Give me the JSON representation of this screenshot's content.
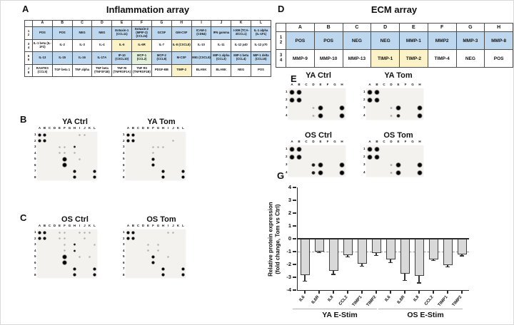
{
  "panels": {
    "a": {
      "letter": "A",
      "title": "Inflammation array"
    },
    "b": {
      "letter": "B",
      "blot1_title": "YA Ctrl",
      "blot2_title": "YA Tom"
    },
    "c": {
      "letter": "C",
      "blot1_title": "OS Ctrl",
      "blot2_title": "OS Tom"
    },
    "d": {
      "letter": "D",
      "title": "ECM array"
    },
    "e": {
      "letter": "E",
      "blot1_title": "YA Ctrl",
      "blot2_title": "YA Tom"
    },
    "f": {
      "letter": "F",
      "blot1_title": "OS Ctrl",
      "blot2_title": "OS Tom"
    },
    "g": {
      "letter": "G"
    }
  },
  "colors": {
    "header_blue": "#BDD7EE",
    "highlight_yellow": "#FBF2C7",
    "highlight_green": "#E2EFDA",
    "white": "#FFFFFF",
    "bar_fill": "#D9D9D9",
    "bar_border": "#404040"
  },
  "inflammation_table": {
    "columns": [
      "A",
      "B",
      "C",
      "D",
      "E",
      "F",
      "G",
      "H",
      "I",
      "J",
      "K",
      "L"
    ],
    "row_numbers": [
      [
        "1",
        "2"
      ],
      [
        "3",
        "4"
      ],
      [
        "5",
        "6"
      ],
      [
        "7",
        "8"
      ]
    ],
    "rows": [
      [
        {
          "t": "POS",
          "s": "b"
        },
        {
          "t": "POS",
          "s": "b"
        },
        {
          "t": "NEG",
          "s": "b"
        },
        {
          "t": "NEG",
          "s": "b"
        },
        {
          "t": "Eotaxin-1 (CCL11)",
          "s": "b"
        },
        {
          "t": "Eotaxin-2 (MPIF-2) (CCL24)",
          "s": "b"
        },
        {
          "t": "GCSF",
          "s": "b"
        },
        {
          "t": "GM-CSF",
          "s": "b"
        },
        {
          "t": "ICAM-1 (CD54)",
          "s": "b"
        },
        {
          "t": "IFN gamma",
          "s": "b"
        },
        {
          "t": "I-309 (TCA-3/CCL1)",
          "s": "b"
        },
        {
          "t": "IL-1 alpha (IL-1F1)",
          "s": "b"
        }
      ],
      [
        {
          "t": "IL-1 beta (IL-1F2)",
          "s": "w"
        },
        {
          "t": "IL-2",
          "s": "w"
        },
        {
          "t": "IL-3",
          "s": "w"
        },
        {
          "t": "IL-4",
          "s": "w"
        },
        {
          "t": "IL-6",
          "s": "y"
        },
        {
          "t": "IL-6R",
          "s": "y"
        },
        {
          "t": "IL-7",
          "s": "w"
        },
        {
          "t": "IL-8 (CXCL8)",
          "s": "y"
        },
        {
          "t": "IL-10",
          "s": "w"
        },
        {
          "t": "IL-11",
          "s": "w"
        },
        {
          "t": "IL-12 p40",
          "s": "w"
        },
        {
          "t": "IL-12 p70",
          "s": "w"
        }
      ],
      [
        {
          "t": "IL-13",
          "s": "b"
        },
        {
          "t": "IL-15",
          "s": "b"
        },
        {
          "t": "IL-16",
          "s": "b"
        },
        {
          "t": "IL-17A",
          "s": "b"
        },
        {
          "t": "IP-10 (CXCL10)",
          "s": "b"
        },
        {
          "t": "MCP-1 (CCL2)",
          "s": "g"
        },
        {
          "t": "MCP-2 (CCL8)",
          "s": "b"
        },
        {
          "t": "M-CSF",
          "s": "b"
        },
        {
          "t": "MIG (CXCL9)",
          "s": "b"
        },
        {
          "t": "MIP-1 alpha (CCL3)",
          "s": "b"
        },
        {
          "t": "MIP-1 beta (CCL4)",
          "s": "b"
        },
        {
          "t": "MIP-1 delta (CCL15)",
          "s": "b"
        }
      ],
      [
        {
          "t": "RANTES (CCL5)",
          "s": "w"
        },
        {
          "t": "TGF beta 1",
          "s": "w"
        },
        {
          "t": "TNF alpha",
          "s": "w"
        },
        {
          "t": "TNF beta (TNFSF1B)",
          "s": "w"
        },
        {
          "t": "TNF RI (TNFRSF1A)",
          "s": "w"
        },
        {
          "t": "TNF RII (TNFRSF1B)",
          "s": "w"
        },
        {
          "t": "PDGF-BB",
          "s": "w"
        },
        {
          "t": "TIMP-2",
          "s": "y"
        },
        {
          "t": "BLANK",
          "s": "w"
        },
        {
          "t": "BLANK",
          "s": "w"
        },
        {
          "t": "NEG",
          "s": "w"
        },
        {
          "t": "POS",
          "s": "w"
        }
      ]
    ]
  },
  "ecm_table": {
    "columns": [
      "A",
      "B",
      "C",
      "D",
      "E",
      "F",
      "G",
      "H"
    ],
    "row_numbers": [
      [
        "1",
        "2"
      ],
      [
        "3",
        "4"
      ]
    ],
    "rows": [
      [
        {
          "t": "POS",
          "s": "b"
        },
        {
          "t": "POS",
          "s": "b"
        },
        {
          "t": "NEG",
          "s": "b"
        },
        {
          "t": "NEG",
          "s": "b"
        },
        {
          "t": "MMP-1",
          "s": "b"
        },
        {
          "t": "MMP2",
          "s": "b"
        },
        {
          "t": "MMP-3",
          "s": "b"
        },
        {
          "t": "MMP-8",
          "s": "b"
        }
      ],
      [
        {
          "t": "MMP-9",
          "s": "w"
        },
        {
          "t": "MMP-10",
          "s": "w"
        },
        {
          "t": "MMP-13",
          "s": "w"
        },
        {
          "t": "TIMP-1",
          "s": "y"
        },
        {
          "t": "TIMP-2",
          "s": "y"
        },
        {
          "t": "TIMP-4",
          "s": "w"
        },
        {
          "t": "NEG",
          "s": "w"
        },
        {
          "t": "POS",
          "s": "w"
        }
      ]
    ]
  },
  "blots": {
    "cols12": [
      "A",
      "B",
      "C",
      "D",
      "E",
      "F",
      "G",
      "H",
      "I",
      "J",
      "K",
      "L"
    ],
    "rows8": [
      "1",
      "2",
      "3",
      "4",
      "5",
      "6",
      "7",
      "8"
    ],
    "cols8": [
      "A",
      "B",
      "C",
      "D",
      "E",
      "F",
      "G",
      "H"
    ],
    "rows4": [
      "1",
      "2",
      "3",
      "4"
    ],
    "b1": {
      "spots": [
        [
          "A",
          1,
          "s"
        ],
        [
          "B",
          1,
          "s"
        ],
        [
          "A",
          2,
          "s"
        ],
        [
          "B",
          2,
          "s"
        ],
        [
          "I",
          1,
          "f"
        ],
        [
          "J",
          1,
          "f"
        ],
        [
          "E",
          3,
          "f"
        ],
        [
          "F",
          3,
          "f"
        ],
        [
          "H",
          3,
          "m"
        ],
        [
          "E",
          4,
          "f"
        ],
        [
          "F",
          4,
          "f"
        ],
        [
          "H",
          4,
          "f"
        ],
        [
          "F",
          5,
          "xl"
        ],
        [
          "F",
          6,
          "xl"
        ],
        [
          "I",
          5,
          "f"
        ],
        [
          "H",
          7,
          "s"
        ],
        [
          "L",
          7,
          "s"
        ],
        [
          "H",
          8,
          "s"
        ],
        [
          "L",
          8,
          "s"
        ]
      ]
    },
    "b2": {
      "spots": [
        [
          "A",
          1,
          "s"
        ],
        [
          "B",
          1,
          "s"
        ],
        [
          "A",
          2,
          "s"
        ],
        [
          "B",
          2,
          "s"
        ],
        [
          "J",
          2,
          "f"
        ],
        [
          "F",
          3,
          "f"
        ],
        [
          "G",
          3,
          "f"
        ],
        [
          "H",
          3,
          "f"
        ],
        [
          "F",
          4,
          "f"
        ],
        [
          "F",
          5,
          "s"
        ],
        [
          "F",
          6,
          "s"
        ],
        [
          "H",
          7,
          "s"
        ],
        [
          "L",
          7,
          "s"
        ],
        [
          "H",
          8,
          "s"
        ],
        [
          "L",
          8,
          "s"
        ]
      ]
    },
    "c1": {
      "spots": [
        [
          "A",
          1,
          "s"
        ],
        [
          "B",
          1,
          "s"
        ],
        [
          "A",
          2,
          "s"
        ],
        [
          "B",
          2,
          "s"
        ],
        [
          "E",
          1,
          "f"
        ],
        [
          "F",
          1,
          "f"
        ],
        [
          "I",
          1,
          "f"
        ],
        [
          "J",
          1,
          "f"
        ],
        [
          "K",
          1,
          "f"
        ],
        [
          "E",
          2,
          "f"
        ],
        [
          "F",
          2,
          "f"
        ],
        [
          "J",
          2,
          "f"
        ],
        [
          "F",
          3,
          "f"
        ],
        [
          "H",
          3,
          "m"
        ],
        [
          "L",
          3,
          "f"
        ],
        [
          "F",
          4,
          "f"
        ],
        [
          "H",
          4,
          "m"
        ],
        [
          "F",
          5,
          "xl"
        ],
        [
          "I",
          5,
          "f"
        ],
        [
          "K",
          5,
          "f"
        ],
        [
          "F",
          6,
          "xl"
        ],
        [
          "H",
          7,
          "s"
        ],
        [
          "L",
          7,
          "s"
        ],
        [
          "H",
          8,
          "s"
        ],
        [
          "L",
          8,
          "s"
        ]
      ]
    },
    "c2": {
      "spots": [
        [
          "A",
          1,
          "s"
        ],
        [
          "B",
          1,
          "s"
        ],
        [
          "A",
          2,
          "s"
        ],
        [
          "B",
          2,
          "s"
        ],
        [
          "I",
          1,
          "f"
        ],
        [
          "J",
          1,
          "f"
        ],
        [
          "E",
          3,
          "f"
        ],
        [
          "G",
          3,
          "f"
        ],
        [
          "E",
          4,
          "f"
        ],
        [
          "G",
          4,
          "f"
        ],
        [
          "F",
          5,
          "s"
        ],
        [
          "I",
          5,
          "f"
        ],
        [
          "F",
          6,
          "s"
        ],
        [
          "H",
          7,
          "s"
        ],
        [
          "L",
          7,
          "s"
        ],
        [
          "H",
          8,
          "s"
        ],
        [
          "L",
          8,
          "s"
        ]
      ]
    },
    "e1": {
      "spots": [
        [
          "A",
          1,
          "s"
        ],
        [
          "B",
          1,
          "s"
        ],
        [
          "A",
          2,
          "s"
        ],
        [
          "B",
          2,
          "s"
        ],
        [
          "D",
          3,
          "f"
        ],
        [
          "E",
          3,
          "s"
        ],
        [
          "H",
          3,
          "s"
        ],
        [
          "D",
          4,
          "f"
        ],
        [
          "E",
          4,
          "s"
        ],
        [
          "H",
          4,
          "s"
        ]
      ]
    },
    "e2": {
      "spots": [
        [
          "A",
          1,
          "s"
        ],
        [
          "B",
          1,
          "s"
        ],
        [
          "A",
          2,
          "s"
        ],
        [
          "B",
          2,
          "s"
        ],
        [
          "D",
          3,
          "f"
        ],
        [
          "E",
          3,
          "s"
        ],
        [
          "H",
          3,
          "s"
        ],
        [
          "D",
          4,
          "f"
        ],
        [
          "E",
          4,
          "m"
        ],
        [
          "H",
          4,
          "s"
        ]
      ]
    },
    "f1": {
      "spots": [
        [
          "A",
          1,
          "s"
        ],
        [
          "B",
          1,
          "s"
        ],
        [
          "A",
          2,
          "s"
        ],
        [
          "B",
          2,
          "s"
        ],
        [
          "D",
          3,
          "m"
        ],
        [
          "E",
          3,
          "s"
        ],
        [
          "H",
          3,
          "s"
        ],
        [
          "D",
          4,
          "m"
        ],
        [
          "E",
          4,
          "s"
        ],
        [
          "H",
          4,
          "s"
        ]
      ]
    },
    "f2": {
      "spots": [
        [
          "A",
          1,
          "s"
        ],
        [
          "B",
          1,
          "s"
        ],
        [
          "A",
          2,
          "s"
        ],
        [
          "B",
          2,
          "s"
        ],
        [
          "D",
          3,
          "f"
        ],
        [
          "E",
          3,
          "s"
        ],
        [
          "H",
          3,
          "s"
        ],
        [
          "D",
          4,
          "f"
        ],
        [
          "E",
          4,
          "s"
        ],
        [
          "H",
          4,
          "s"
        ]
      ]
    }
  },
  "chart_data": {
    "type": "bar",
    "ylabel_line1": "Relative protein expression",
    "ylabel_line2": "(fold change, Tom vs Ctrl)",
    "ylim": [
      -4,
      4
    ],
    "yticks": [
      4,
      3,
      2,
      1,
      0,
      -1,
      -2,
      -3,
      -4
    ],
    "reference_line": -1,
    "grid": false,
    "bar_fill": "#D9D9D9",
    "bar_border": "#404040",
    "groups": [
      {
        "label": "YA E-Stim",
        "categories": [
          "IL6",
          "IL6R",
          "IL8",
          "CCL2",
          "TIMP1",
          "TIMP2"
        ],
        "values": [
          -2.85,
          -1.0,
          -2.5,
          -1.25,
          -1.95,
          -1.1
        ],
        "errors": [
          0.45,
          0.08,
          0.28,
          0.15,
          0.2,
          0.2
        ]
      },
      {
        "label": "OS E-Stim",
        "categories": [
          "IL6",
          "IL6R",
          "IL8",
          "CCL2",
          "TIMP1",
          "TIMP2"
        ],
        "values": [
          -1.6,
          -2.7,
          -2.9,
          -1.6,
          -2.05,
          -1.2
        ],
        "errors": [
          0.25,
          0.55,
          0.55,
          0.1,
          0.15,
          0.13
        ]
      }
    ]
  }
}
